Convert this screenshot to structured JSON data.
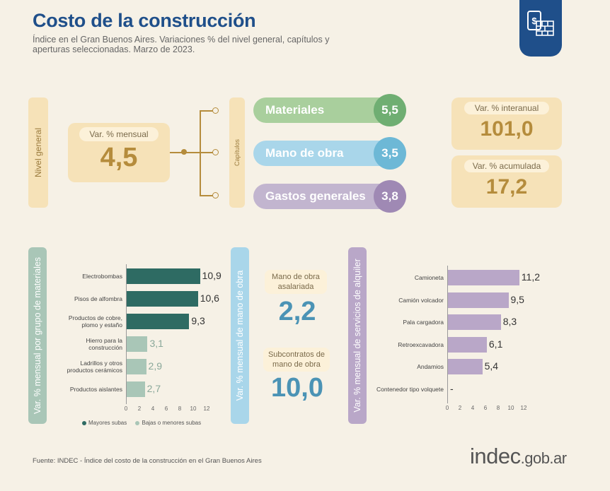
{
  "header": {
    "title": "Costo de la construcción",
    "subtitle": "Índice en el Gran Buenos Aires. Variaciones % del nivel general, capítulos y aperturas seleccionadas. Marzo de 2023."
  },
  "logo": {
    "icon": "construction-cost-icon",
    "color": "#1f4f8a"
  },
  "nivel_general": {
    "side_label": "Nivel general",
    "monthly_label": "Var. % mensual",
    "monthly_value": "4,5"
  },
  "capitulos": {
    "side_label": "Capítulos",
    "items": [
      {
        "name": "Materiales",
        "value": "5,5",
        "color": "#a9cf9d",
        "circle": "#6fae72"
      },
      {
        "name": "Mano de obra",
        "value": "3,5",
        "color": "#a9d6ea",
        "circle": "#6db8d6"
      },
      {
        "name": "Gastos generales",
        "value": "3,8",
        "color": "#c2b5cf",
        "circle": "#9f89b4"
      }
    ]
  },
  "interanual": {
    "label": "Var. % interanual",
    "value": "101,0"
  },
  "acumulada": {
    "label": "Var. % acumulada",
    "value": "17,2"
  },
  "materiales_panel": {
    "side_label": "Var. % mensual por grupo de materiales"
  },
  "mano_obra_panel": {
    "side_label": "Var. % mensual de mano de obra",
    "asalariada_label": "Mano de obra asalariada",
    "asalariada_value": "2,2",
    "subcontratos_label": "Subcontratos de mano de obra",
    "subcontratos_value": "10,0"
  },
  "alquiler_panel": {
    "side_label": "Var. % mensual de servicios de alquiler"
  },
  "legend": {
    "mayores": "Mayores subas",
    "menores": "Bajas o menores subas"
  },
  "chart_data": [
    {
      "type": "bar",
      "orientation": "horizontal",
      "categories": [
        "Electrobombas",
        "Pisos de alfombra",
        "Productos de cobre, plomo y estaño",
        "Hierro para la construcción",
        "Ladrillos y otros productos cerámicos",
        "Productos aislantes"
      ],
      "values": [
        10.9,
        10.6,
        9.3,
        3.1,
        2.9,
        2.7
      ],
      "value_labels": [
        "10,9",
        "10,6",
        "9,3",
        "3,1",
        "2,9",
        "2,7"
      ],
      "groups": [
        "mayores",
        "mayores",
        "mayores",
        "menores",
        "menores",
        "menores"
      ],
      "colors": {
        "mayores": "#2e6b63",
        "menores": "#a9c6b7"
      },
      "xlim": [
        0,
        12
      ],
      "ticks": [
        "0",
        "2",
        "4",
        "6",
        "8",
        "10",
        "12"
      ]
    },
    {
      "type": "bar",
      "orientation": "horizontal",
      "categories": [
        "Camioneta",
        "Camión volcador",
        "Pala cargadora",
        "Retroexcavadora",
        "Andamios",
        "Contenedor tipo volquete"
      ],
      "values": [
        11.2,
        9.5,
        8.3,
        6.1,
        5.4,
        null
      ],
      "value_labels": [
        "11,2",
        "9,5",
        "8,3",
        "6,1",
        "5,4",
        "-"
      ],
      "color": "#b9a7c8",
      "xlim": [
        0,
        12
      ],
      "ticks": [
        "0",
        "2",
        "4",
        "6",
        "8",
        "10",
        "12"
      ]
    }
  ],
  "footer": {
    "source": "Fuente: INDEC - Índice del costo de la construcción en el Gran Buenos Aires",
    "brand": "indec",
    "brand_suffix": ".gob.ar"
  }
}
